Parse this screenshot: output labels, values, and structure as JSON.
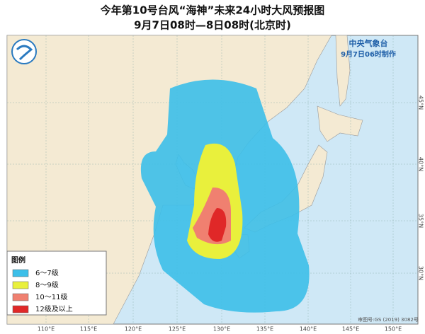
{
  "header": {
    "title": "今年第10号台风“海神”未来24小时大风预报图",
    "subtitle": "9月7日08时—8日08时(北京时)"
  },
  "agency": {
    "name": "中央气象台",
    "issued": "9月7日06时制作"
  },
  "legend": {
    "title": "图例",
    "items": [
      "6～7级",
      "8～9级",
      "10～11级",
      "12级及以上"
    ]
  },
  "longitudes": [
    "110°E",
    "115°E",
    "120°E",
    "125°E",
    "130°E",
    "135°E",
    "140°E",
    "145°E",
    "150°E"
  ],
  "latitudes": [
    "45°N",
    "40°N",
    "35°N",
    "30°N"
  ],
  "review_number": "审图号:GS (2019) 3082号"
}
